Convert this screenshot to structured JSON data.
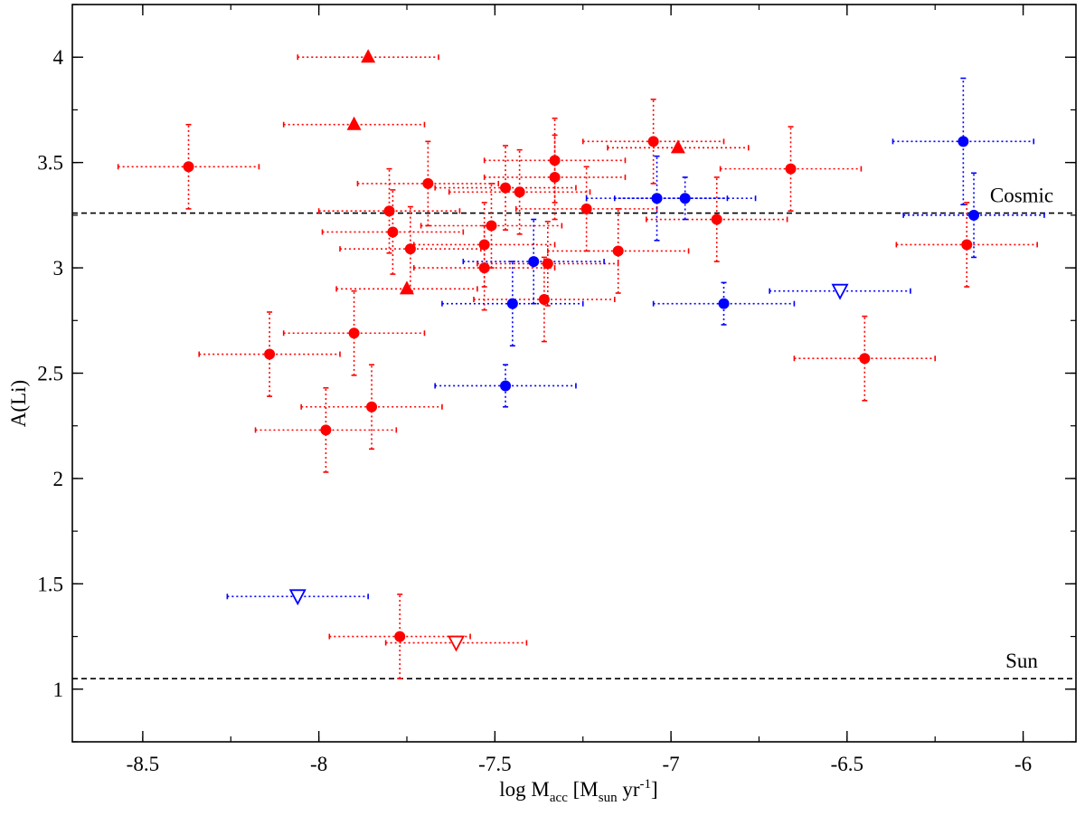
{
  "chart_data": {
    "type": "scatter",
    "title": "",
    "xlabel": {
      "base": "log M",
      "sub1": "acc",
      "mid": " [M",
      "sub2": "sun",
      "mid2": " yr",
      "sup": "-1",
      "end": "]"
    },
    "ylabel": "A(Li)",
    "xlim": [
      -8.7,
      -5.85
    ],
    "ylim": [
      0.75,
      4.25
    ],
    "x_ticks": [
      -8.5,
      -8,
      -7.5,
      -7,
      -6.5,
      -6
    ],
    "x_tick_labels": [
      "-8.5",
      "-8",
      "-7.5",
      "-7",
      "-6.5",
      "-6"
    ],
    "y_ticks": [
      1,
      1.5,
      2,
      2.5,
      3,
      3.5,
      4
    ],
    "y_tick_labels": [
      "1",
      "1.5",
      "2",
      "2.5",
      "3",
      "3.5",
      "4"
    ],
    "grid": false,
    "colors": {
      "red": "#ff0000",
      "blue": "#0000ff",
      "reference_line": "#000000"
    },
    "reference_lines": [
      {
        "label": "Cosmic",
        "y": 3.26
      },
      {
        "label": "Sun",
        "y": 1.05
      }
    ],
    "series": [
      {
        "color": "red",
        "marker": "circle",
        "points": [
          {
            "x": -8.37,
            "y": 3.48,
            "xerr": 0.2,
            "yerr": 0.2
          },
          {
            "x": -8.14,
            "y": 2.59,
            "xerr": 0.2,
            "yerr": 0.2
          },
          {
            "x": -7.98,
            "y": 2.23,
            "xerr": 0.2,
            "yerr": 0.2
          },
          {
            "x": -7.9,
            "y": 2.69,
            "xerr": 0.2,
            "yerr": 0.2
          },
          {
            "x": -7.85,
            "y": 2.34,
            "xerr": 0.2,
            "yerr": 0.2
          },
          {
            "x": -7.8,
            "y": 3.27,
            "xerr": 0.2,
            "yerr": 0.2
          },
          {
            "x": -7.79,
            "y": 3.17,
            "xerr": 0.2,
            "yerr": 0.2
          },
          {
            "x": -7.77,
            "y": 1.25,
            "xerr": 0.2,
            "yerr": 0.2
          },
          {
            "x": -7.74,
            "y": 3.09,
            "xerr": 0.2,
            "yerr": 0.2
          },
          {
            "x": -7.69,
            "y": 3.4,
            "xerr": 0.2,
            "yerr": 0.2
          },
          {
            "x": -7.53,
            "y": 3.11,
            "xerr": 0.2,
            "yerr": 0.2
          },
          {
            "x": -7.53,
            "y": 3.0,
            "xerr": 0.2,
            "yerr": 0.2
          },
          {
            "x": -7.51,
            "y": 3.2,
            "xerr": 0.2,
            "yerr": 0.2
          },
          {
            "x": -7.47,
            "y": 3.38,
            "xerr": 0.2,
            "yerr": 0.2
          },
          {
            "x": -7.43,
            "y": 3.36,
            "xerr": 0.2,
            "yerr": 0.2
          },
          {
            "x": -7.36,
            "y": 2.85,
            "xerr": 0.2,
            "yerr": 0.2
          },
          {
            "x": -7.35,
            "y": 3.02,
            "xerr": 0.2,
            "yerr": 0.2
          },
          {
            "x": -7.33,
            "y": 3.51,
            "xerr": 0.2,
            "yerr": 0.2
          },
          {
            "x": -7.33,
            "y": 3.43,
            "xerr": 0.2,
            "yerr": 0.2
          },
          {
            "x": -7.24,
            "y": 3.28,
            "xerr": 0.2,
            "yerr": 0.2
          },
          {
            "x": -7.15,
            "y": 3.08,
            "xerr": 0.2,
            "yerr": 0.2
          },
          {
            "x": -7.05,
            "y": 3.6,
            "xerr": 0.2,
            "yerr": 0.2
          },
          {
            "x": -6.87,
            "y": 3.23,
            "xerr": 0.2,
            "yerr": 0.2
          },
          {
            "x": -6.66,
            "y": 3.47,
            "xerr": 0.2,
            "yerr": 0.2
          },
          {
            "x": -6.45,
            "y": 2.57,
            "xerr": 0.2,
            "yerr": 0.2
          },
          {
            "x": -6.16,
            "y": 3.11,
            "xerr": 0.2,
            "yerr": 0.2
          }
        ]
      },
      {
        "color": "red",
        "marker": "triangle-up",
        "points": [
          {
            "x": -7.86,
            "y": 4.0,
            "xerr": 0.2
          },
          {
            "x": -7.9,
            "y": 3.68,
            "xerr": 0.2
          },
          {
            "x": -7.75,
            "y": 2.9,
            "xerr": 0.2
          },
          {
            "x": -6.98,
            "y": 3.57,
            "xerr": 0.2
          }
        ]
      },
      {
        "color": "red",
        "marker": "triangle-down-open",
        "points": [
          {
            "x": -7.61,
            "y": 1.22,
            "xerr": 0.2
          }
        ]
      },
      {
        "color": "blue",
        "marker": "circle",
        "points": [
          {
            "x": -7.47,
            "y": 2.44,
            "xerr": 0.2,
            "yerr": 0.1
          },
          {
            "x": -7.45,
            "y": 2.83,
            "xerr": 0.2,
            "yerr": 0.2
          },
          {
            "x": -7.39,
            "y": 3.03,
            "xerr": 0.2,
            "yerr": 0.2
          },
          {
            "x": -7.04,
            "y": 3.33,
            "xerr": 0.2,
            "yerr": 0.2
          },
          {
            "x": -6.96,
            "y": 3.33,
            "xerr": 0.2,
            "yerr": 0.1
          },
          {
            "x": -6.85,
            "y": 2.83,
            "xerr": 0.2,
            "yerr": 0.1
          },
          {
            "x": -6.17,
            "y": 3.6,
            "xerr": 0.2,
            "yerr": 0.3
          },
          {
            "x": -6.14,
            "y": 3.25,
            "xerr": 0.2,
            "yerr": 0.2
          }
        ]
      },
      {
        "color": "blue",
        "marker": "triangle-down-open",
        "points": [
          {
            "x": -8.06,
            "y": 1.44,
            "xerr": 0.2
          },
          {
            "x": -6.52,
            "y": 2.89,
            "xerr": 0.2
          }
        ]
      }
    ]
  }
}
